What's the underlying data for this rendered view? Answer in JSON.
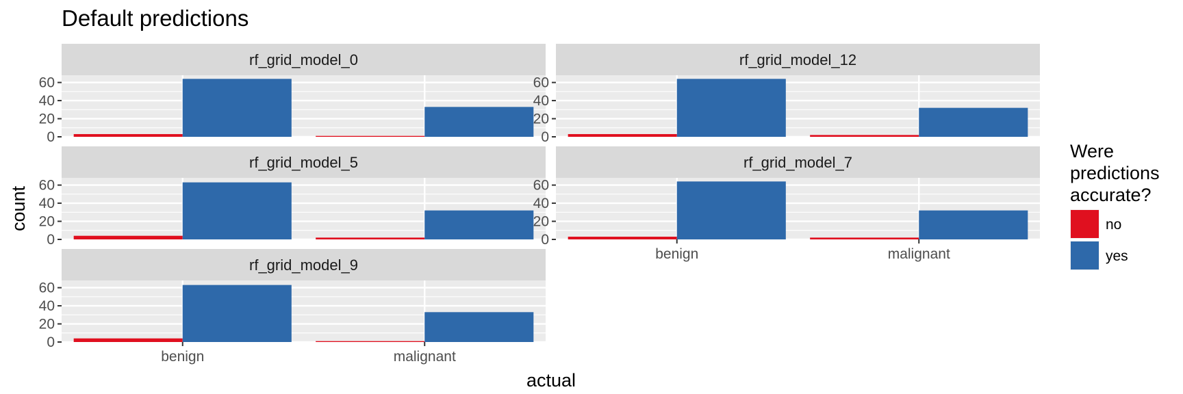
{
  "chart_data": {
    "type": "bar",
    "title": "Default predictions",
    "xlabel": "actual",
    "ylabel": "count",
    "categories": [
      "benign",
      "malignant"
    ],
    "y_ticks": [
      0,
      20,
      40,
      60
    ],
    "ylim": [
      0,
      68
    ],
    "grid": true,
    "legend": {
      "title_lines": [
        "Were",
        "predictions",
        "accurate?"
      ],
      "placement": "right",
      "entries": [
        {
          "name": "no",
          "color": "#E0101F"
        },
        {
          "name": "yes",
          "color": "#2E69AA"
        }
      ]
    },
    "panels": [
      {
        "label": "rf_grid_model_0",
        "series": [
          {
            "name": "no",
            "values": [
              3,
              1
            ]
          },
          {
            "name": "yes",
            "values": [
              64,
              33
            ]
          }
        ]
      },
      {
        "label": "rf_grid_model_12",
        "series": [
          {
            "name": "no",
            "values": [
              3,
              2
            ]
          },
          {
            "name": "yes",
            "values": [
              64,
              32
            ]
          }
        ]
      },
      {
        "label": "rf_grid_model_5",
        "series": [
          {
            "name": "no",
            "values": [
              4,
              2
            ]
          },
          {
            "name": "yes",
            "values": [
              63,
              32
            ]
          }
        ]
      },
      {
        "label": "rf_grid_model_7",
        "series": [
          {
            "name": "no",
            "values": [
              3,
              2
            ]
          },
          {
            "name": "yes",
            "values": [
              64,
              32
            ]
          }
        ]
      },
      {
        "label": "rf_grid_model_9",
        "series": [
          {
            "name": "no",
            "values": [
              4,
              1
            ]
          },
          {
            "name": "yes",
            "values": [
              63,
              33
            ]
          }
        ]
      }
    ]
  }
}
